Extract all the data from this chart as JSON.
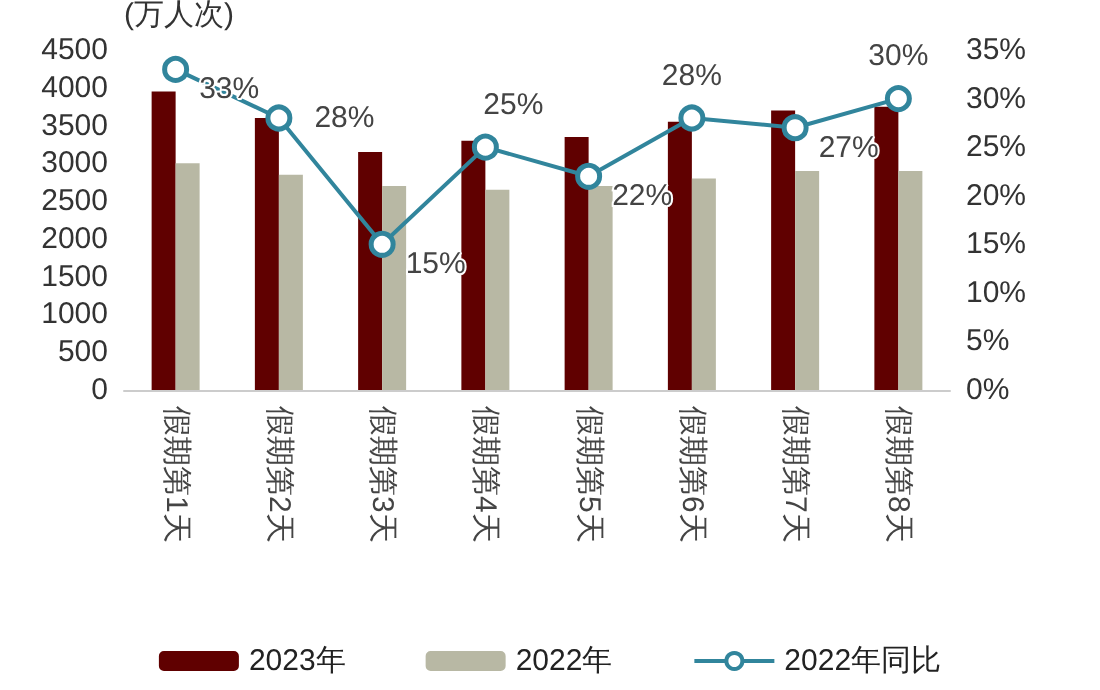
{
  "chart_data": {
    "type": "bar",
    "ylabel": "(万人次)",
    "categories": [
      "假期第1天",
      "假期第2天",
      "假期第3天",
      "假期第4天",
      "假期第5天",
      "假期第6天",
      "假期第7天",
      "假期第8天"
    ],
    "series": [
      {
        "name": "2023年",
        "color": "#600000",
        "values": [
          3950,
          3600,
          3150,
          3300,
          3350,
          3550,
          3700,
          3750
        ]
      },
      {
        "name": "2022年",
        "color": "#b8b8a4",
        "values": [
          3000,
          2850,
          2700,
          2650,
          2700,
          2800,
          2900,
          2900
        ]
      },
      {
        "name": "2022年同比",
        "type": "line",
        "axis": "y2",
        "color": "#31859c",
        "marker": "circle",
        "values": [
          33,
          28,
          15,
          25,
          22,
          28,
          27,
          30
        ],
        "value_labels": [
          "33%",
          "28%",
          "15%",
          "25%",
          "22%",
          "28%",
          "27%",
          "30%"
        ]
      }
    ],
    "ylim": [
      0,
      4500
    ],
    "yticks": [
      0,
      500,
      1000,
      1500,
      2000,
      2500,
      3000,
      3500,
      4000,
      4500
    ],
    "y2lim": [
      0,
      35
    ],
    "y2ticks": [
      {
        "value": 0,
        "label": "0%"
      },
      {
        "value": 5,
        "label": "5%"
      },
      {
        "value": 10,
        "label": "10%"
      },
      {
        "value": 15,
        "label": "15%"
      },
      {
        "value": 20,
        "label": "20%"
      },
      {
        "value": 25,
        "label": "25%"
      },
      {
        "value": 30,
        "label": "30%"
      },
      {
        "value": 35,
        "label": "35%"
      }
    ],
    "grid": false,
    "legend": "bottom"
  }
}
